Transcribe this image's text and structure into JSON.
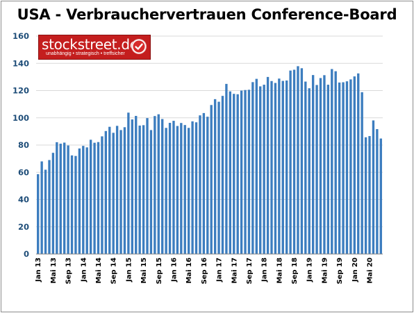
{
  "chart_data": {
    "type": "bar",
    "title": "USA - Verbrauchervertrauen Conference-Board",
    "xlabel": "",
    "ylabel": "",
    "ylim": [
      0,
      160
    ],
    "yticks": [
      0,
      20,
      40,
      60,
      80,
      100,
      120,
      140,
      160
    ],
    "grid": true,
    "legend": "none",
    "bar_color": "#3c7dbf",
    "grid_color": "#d9d9d9",
    "categories": [
      "Jan 13",
      "Feb 13",
      "Mär 13",
      "Apr 13",
      "Mai 13",
      "Jun 13",
      "Jul 13",
      "Aug 13",
      "Sep 13",
      "Okt 13",
      "Nov 13",
      "Dez 13",
      "Jan 14",
      "Feb 14",
      "Mär 14",
      "Apr 14",
      "Mai 14",
      "Jun 14",
      "Jul 14",
      "Aug 14",
      "Sep 14",
      "Okt 14",
      "Nov 14",
      "Dez 14",
      "Jan 15",
      "Feb 15",
      "Mär 15",
      "Apr 15",
      "Mai 15",
      "Jun 15",
      "Jul 15",
      "Aug 15",
      "Sep 15",
      "Okt 15",
      "Nov 15",
      "Dez 15",
      "Jan 16",
      "Feb 16",
      "Mär 16",
      "Apr 16",
      "Mai 16",
      "Jun 16",
      "Jul 16",
      "Aug 16",
      "Sep 16",
      "Okt 16",
      "Nov 16",
      "Dez 16",
      "Jan 17",
      "Feb 17",
      "Mär 17",
      "Apr 17",
      "Mai 17",
      "Jun 17",
      "Jul 17",
      "Aug 17",
      "Sep 17",
      "Okt 17",
      "Nov 17",
      "Dez 17",
      "Jan 18",
      "Feb 18",
      "Mär 18",
      "Apr 18",
      "Mai 18",
      "Jun 18",
      "Jul 18",
      "Aug 18",
      "Sep 18",
      "Okt 18",
      "Nov 18",
      "Dez 18",
      "Jan 19",
      "Feb 19",
      "Mär 19",
      "Apr 19",
      "Mai 19",
      "Jun 19",
      "Jul 19",
      "Aug 19",
      "Sep 19",
      "Okt 19",
      "Nov 19",
      "Dez 19",
      "Jan 20",
      "Feb 20",
      "Mär 20",
      "Apr 20",
      "Mai 20",
      "Jun 20",
      "Jul 20",
      "Aug 20"
    ],
    "tick_labels": [
      "Jan 13",
      "Mai 13",
      "Sep 13",
      "Jan 14",
      "Mai 14",
      "Sep 14",
      "Jan 15",
      "Mai 15",
      "Sep 15",
      "Jan 16",
      "Mai 16",
      "Sep 16",
      "Jan 17",
      "Mai 17",
      "Sep 17",
      "Jan 18",
      "Mai 18",
      "Sep 18",
      "Jan 19",
      "Mai 19",
      "Sep 19",
      "Jan 20",
      "Mai 20"
    ],
    "values": [
      58.6,
      68.0,
      61.9,
      69.0,
      74.3,
      82.1,
      81.0,
      81.8,
      79.7,
      72.4,
      72.0,
      77.5,
      79.4,
      78.3,
      83.9,
      81.7,
      82.2,
      86.4,
      90.3,
      93.4,
      89.0,
      94.1,
      91.0,
      93.1,
      103.8,
      98.8,
      101.4,
      94.3,
      94.6,
      99.8,
      91.0,
      101.3,
      102.6,
      99.1,
      92.6,
      96.3,
      97.8,
      94.0,
      96.2,
      94.7,
      92.6,
      97.4,
      96.7,
      101.8,
      103.5,
      100.8,
      109.4,
      113.7,
      111.8,
      116.1,
      124.9,
      119.4,
      117.6,
      117.3,
      120.0,
      120.4,
      120.6,
      126.2,
      128.6,
      123.1,
      124.3,
      130.0,
      127.0,
      125.6,
      128.8,
      127.1,
      127.4,
      134.7,
      135.3,
      137.9,
      136.4,
      126.6,
      121.7,
      131.4,
      124.1,
      129.2,
      131.3,
      124.3,
      135.8,
      134.2,
      125.9,
      126.1,
      126.8,
      128.2,
      130.4,
      132.6,
      118.8,
      85.7,
      86.6,
      98.1,
      91.7,
      84.8
    ]
  },
  "logo": {
    "name": "stockstreet.de",
    "tagline": "unabhängig • strategisch • treffsicher"
  }
}
